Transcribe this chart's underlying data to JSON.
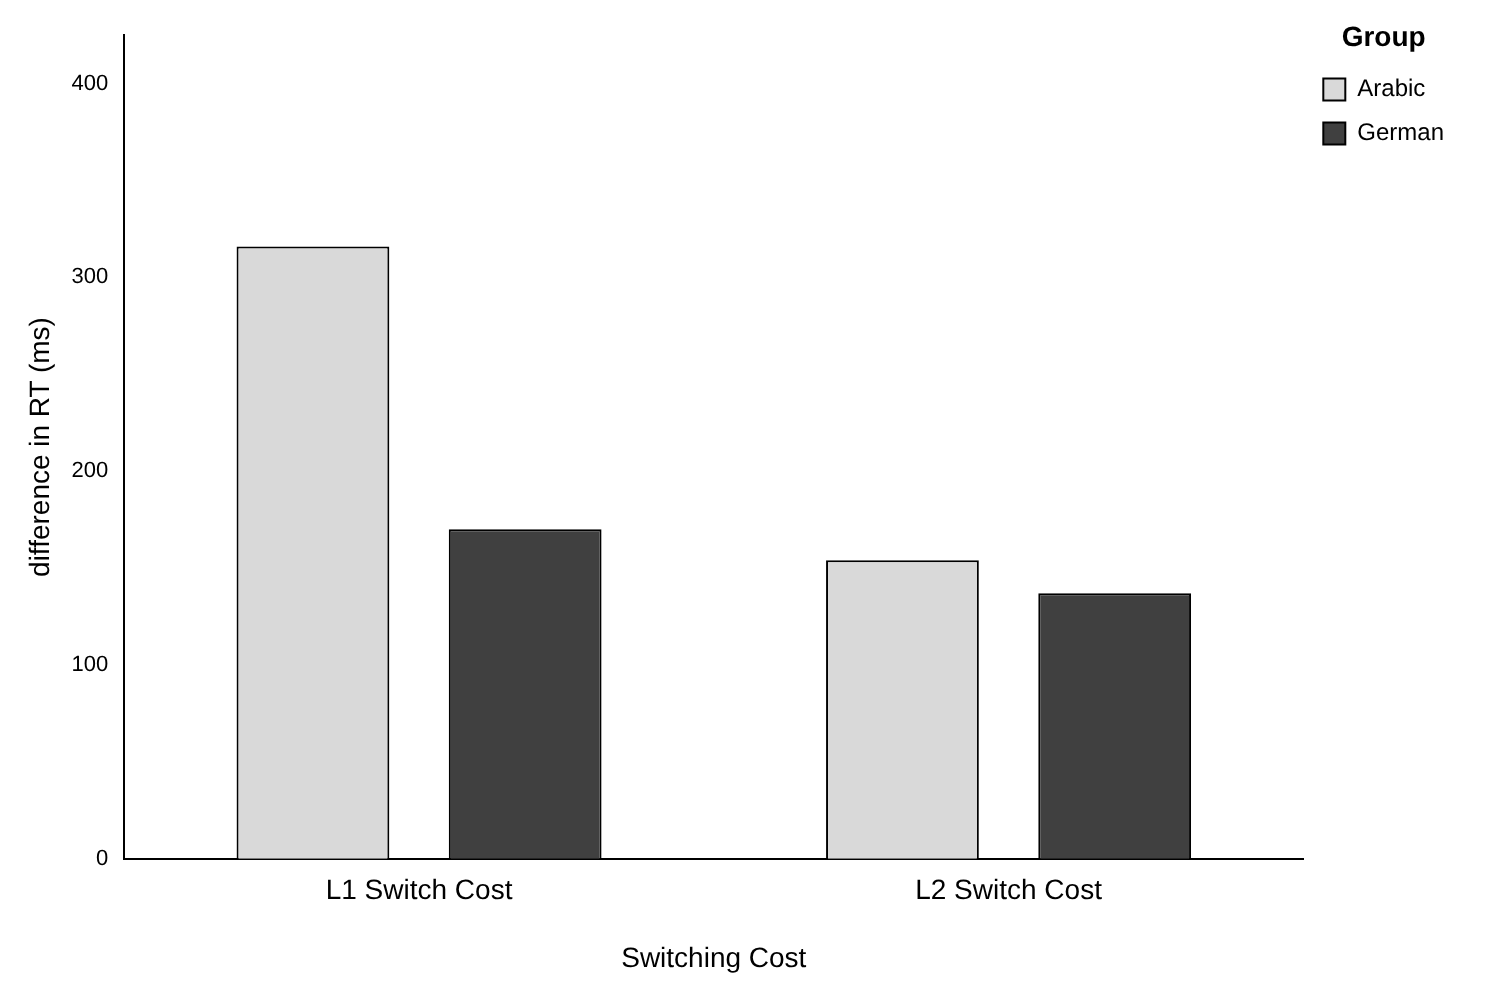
{
  "chart_data": {
    "type": "bar",
    "xlabel": "Switching Cost",
    "ylabel": "difference in RT (ms)",
    "legend_title": "Group",
    "categories": [
      "L1 Switch Cost",
      "L2 Switch Cost"
    ],
    "series": [
      {
        "name": "Arabic",
        "color": "#d9d9d9",
        "values": [
          316,
          154
        ]
      },
      {
        "name": "German",
        "color": "#404040",
        "values": [
          170,
          137
        ]
      }
    ],
    "ylim": [
      0,
      425
    ],
    "yticks": [
      0,
      100,
      200,
      300,
      400
    ],
    "grid": false,
    "legend": "top right"
  }
}
